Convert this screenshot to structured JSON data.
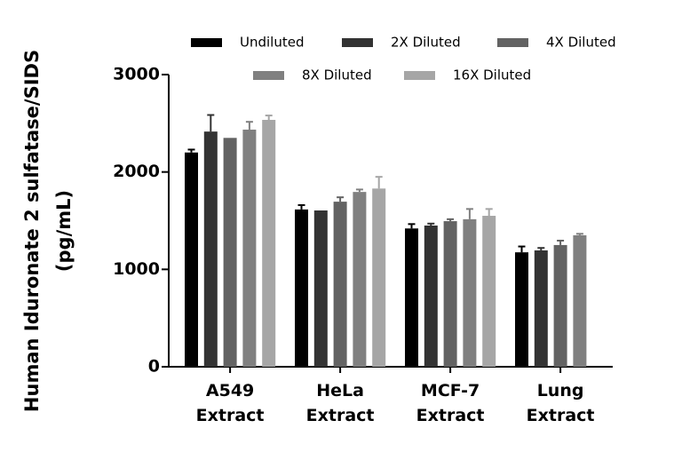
{
  "chart_data": {
    "type": "bar",
    "ylabel": "Human Iduronate 2 sulfatase/SIDS (pg/mL)",
    "categories": [
      "A549 Extract",
      "HeLa Extract",
      "MCF-7 Extract",
      "Lung Extract"
    ],
    "series": [
      {
        "name": "Undiluted",
        "color": "#000000",
        "values": [
          2200,
          1615,
          1420,
          1175
        ],
        "errors": [
          30,
          45,
          45,
          60
        ]
      },
      {
        "name": "2X Diluted",
        "color": "#333333",
        "values": [
          2415,
          1605,
          1450,
          1195
        ],
        "errors": [
          170,
          null,
          20,
          25
        ]
      },
      {
        "name": "4X Diluted",
        "color": "#636363",
        "values": [
          2350,
          1695,
          1495,
          1250
        ],
        "errors": [
          null,
          45,
          20,
          45
        ]
      },
      {
        "name": "8X Diluted",
        "color": "#808080",
        "values": [
          2435,
          1795,
          1515,
          1350
        ],
        "errors": [
          80,
          25,
          105,
          15
        ]
      },
      {
        "name": "16X Diluted",
        "color": "#a6a6a6",
        "values": [
          2535,
          1830,
          1550,
          null
        ],
        "errors": [
          45,
          120,
          70,
          null
        ]
      }
    ],
    "ylim": [
      0,
      3000
    ],
    "yticks": [
      0,
      1000,
      2000,
      3000
    ]
  }
}
